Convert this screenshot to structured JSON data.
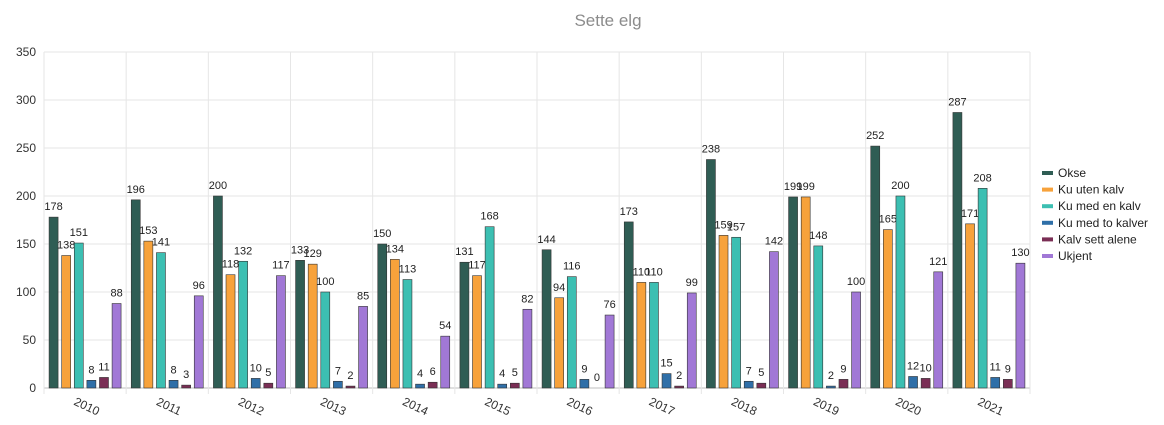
{
  "chart_data": {
    "type": "bar",
    "title": "Sette elg",
    "xlabel": "",
    "ylabel": "",
    "ylim": [
      0,
      350
    ],
    "yticks": [
      0,
      50,
      100,
      150,
      200,
      250,
      300,
      350
    ],
    "grid": true,
    "legend_position": "right",
    "categories": [
      "2010",
      "2011",
      "2012",
      "2013",
      "2014",
      "2015",
      "2016",
      "2017",
      "2018",
      "2019",
      "2020",
      "2021"
    ],
    "series": [
      {
        "name": "Okse",
        "color": "#2f5d54",
        "values": [
          178,
          196,
          200,
          133,
          150,
          131,
          144,
          173,
          238,
          199,
          252,
          287
        ]
      },
      {
        "name": "Ku uten kalv",
        "color": "#f7a23b",
        "values": [
          138,
          153,
          118,
          129,
          134,
          117,
          94,
          110,
          159,
          199,
          165,
          171
        ]
      },
      {
        "name": "Ku med en kalv",
        "color": "#3cbfb2",
        "values": [
          151,
          141,
          132,
          100,
          113,
          168,
          116,
          110,
          157,
          148,
          200,
          208
        ]
      },
      {
        "name": "Ku med to kalver",
        "color": "#2f6fa8",
        "values": [
          8,
          8,
          10,
          7,
          4,
          4,
          9,
          15,
          7,
          2,
          12,
          11
        ]
      },
      {
        "name": "Kalv sett alene",
        "color": "#7a2e55",
        "values": [
          11,
          3,
          5,
          2,
          6,
          5,
          0,
          2,
          5,
          9,
          10,
          9
        ]
      },
      {
        "name": "Ukjent",
        "color": "#a178d6",
        "values": [
          88,
          96,
          117,
          85,
          54,
          82,
          76,
          99,
          142,
          100,
          121,
          130
        ]
      }
    ]
  }
}
